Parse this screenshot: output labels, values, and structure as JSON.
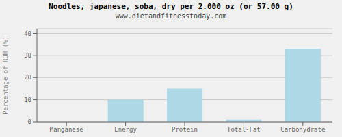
{
  "chart_data": {
    "type": "bar",
    "title": "Noodles, japanese, soba, dry per 2.000 oz (or 57.00 g)",
    "subtitle": "www.dietandfitnesstoday.com",
    "categories": [
      "Manganese",
      "Energy",
      "Protein",
      "Total-Fat",
      "Carbohydrate"
    ],
    "values": [
      0.0,
      10.0,
      15.0,
      1.0,
      33.0
    ],
    "color": "#add8e6",
    "ylabel": "Percentage of RDH (%)",
    "ylim": [
      0,
      42
    ],
    "yticks": [
      0,
      10,
      20,
      30,
      40
    ],
    "grid": true
  }
}
